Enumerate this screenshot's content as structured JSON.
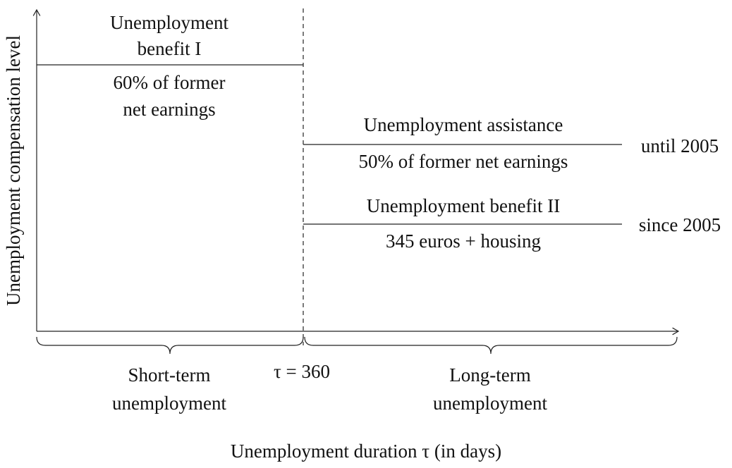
{
  "y_axis_label": "Unemployment compensation level",
  "x_axis_label": "Unemployment duration τ (in days)",
  "threshold_label": "τ = 360",
  "benefit_1": {
    "title": [
      "Unemployment",
      "benefit I"
    ],
    "description": [
      "60% of former",
      "net earnings"
    ]
  },
  "assistance": {
    "title": "Unemployment assistance",
    "description": "50% of former net earnings",
    "period": "until 2005"
  },
  "benefit_2": {
    "title": "Unemployment benefit II",
    "description": "345 euros + housing",
    "period": "since 2005"
  },
  "short_term": [
    "Short-term",
    "unemployment"
  ],
  "long_term": [
    "Long-term",
    "unemployment"
  ]
}
